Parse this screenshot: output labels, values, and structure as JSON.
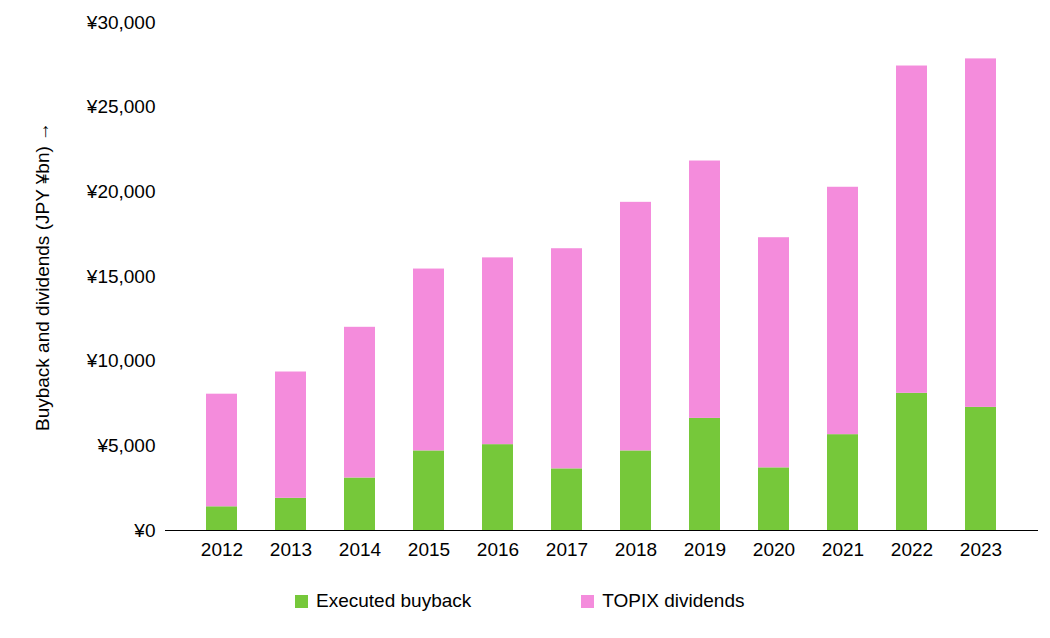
{
  "chart_data": {
    "type": "bar",
    "stacked": true,
    "y_label": "Buyback and dividends (JPY ¥bn)",
    "categories": [
      "2012",
      "2013",
      "2014",
      "2015",
      "2016",
      "2017",
      "2018",
      "2019",
      "2020",
      "2021",
      "2022",
      "2023"
    ],
    "series": [
      {
        "name": "Executed buyback",
        "color": "#76c83a",
        "values": [
          1400,
          1900,
          3100,
          4700,
          5070,
          3640,
          4700,
          6620,
          3700,
          5660,
          8100,
          7270
        ]
      },
      {
        "name": "TOPIX dividends",
        "color": "#f48cdc",
        "values": [
          6650,
          7460,
          8900,
          10740,
          11030,
          13000,
          14680,
          15200,
          13590,
          14610,
          19330,
          20580
        ]
      }
    ],
    "ylim": [
      0,
      30000
    ],
    "yticks": [
      {
        "value": 0,
        "label": "¥0"
      },
      {
        "value": 5000,
        "label": "¥5,000"
      },
      {
        "value": 10000,
        "label": "¥10,000"
      },
      {
        "value": 15000,
        "label": "¥15,000"
      },
      {
        "value": 20000,
        "label": "¥20,000"
      },
      {
        "value": 25000,
        "label": "¥25,000"
      },
      {
        "value": 30000,
        "label": "¥30,000"
      }
    ],
    "grid": false,
    "legend": "bottom"
  }
}
